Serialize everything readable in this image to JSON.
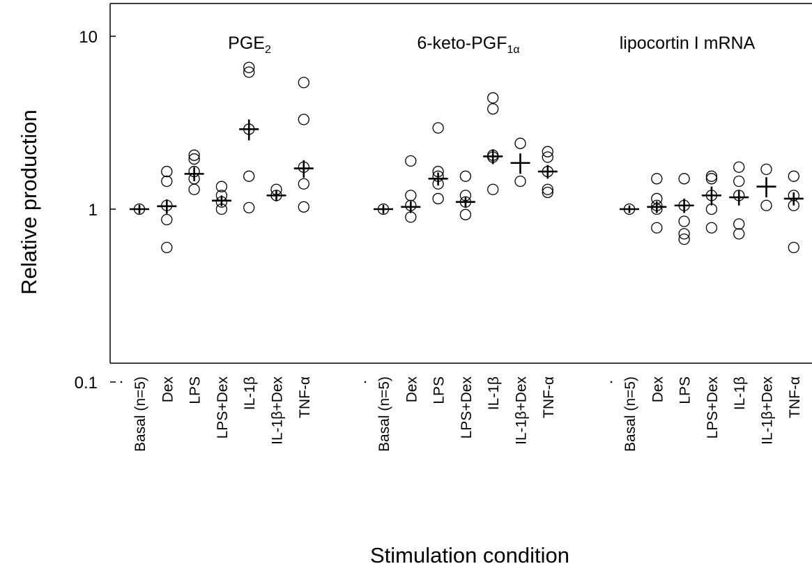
{
  "chart_data": {
    "type": "scatter",
    "title": "",
    "xlabel": "Stimulation condition",
    "ylabel": "Relative production",
    "yscale": "log",
    "ylim": [
      0.1,
      20
    ],
    "yticks": [
      {
        "value": 0.1,
        "label": "0.1"
      },
      {
        "value": 1,
        "label": "1"
      },
      {
        "value": 10,
        "label": "10"
      }
    ],
    "grid": false,
    "legend": "none",
    "marker_style": "open circles = individual values; crosses = mean ± error",
    "categories": [
      "Basal (n=5)",
      "Dex",
      "LPS",
      "LPS+Dex",
      "IL-1β",
      "IL-1β+Dex",
      "TNF-α"
    ],
    "panels": [
      {
        "title_main": "PGE",
        "title_sub": "2",
        "groups": [
          {
            "category": "Basal (n=5)",
            "points": [
              1.0
            ],
            "mean": 1.0,
            "err": 0.06
          },
          {
            "category": "Dex",
            "points": [
              1.65,
              1.45,
              1.05,
              0.87,
              0.6
            ],
            "mean": 1.04,
            "err": 0.1
          },
          {
            "category": "LPS",
            "points": [
              2.05,
              1.95,
              1.65,
              1.5,
              1.3
            ],
            "mean": 1.6,
            "err": 0.15
          },
          {
            "category": "LPS+Dex",
            "points": [
              1.35,
              1.2,
              1.1,
              1.0
            ],
            "mean": 1.12,
            "err": 0.08
          },
          {
            "category": "IL-1β",
            "points": [
              6.6,
              6.2,
              2.9,
              1.55,
              1.02
            ],
            "mean": 2.9,
            "err": 0.4
          },
          {
            "category": "IL-1β+Dex",
            "points": [
              1.3,
              1.2
            ],
            "mean": 1.2,
            "err": 0.09
          },
          {
            "category": "TNF-α",
            "points": [
              5.4,
              3.3,
              1.75,
              1.4,
              1.03
            ],
            "mean": 1.72,
            "err": 0.2
          }
        ]
      },
      {
        "title_main": "6-keto-PGF",
        "title_sub": "1α",
        "groups": [
          {
            "category": "Basal (n=5)",
            "points": [
              1.0
            ],
            "mean": 1.0,
            "err": 0.06
          },
          {
            "category": "Dex",
            "points": [
              1.9,
              1.2,
              1.05,
              0.9
            ],
            "mean": 1.03,
            "err": 0.08
          },
          {
            "category": "LPS",
            "points": [
              2.95,
              1.65,
              1.55,
              1.4,
              1.15
            ],
            "mean": 1.5,
            "err": 0.13
          },
          {
            "category": "LPS+Dex",
            "points": [
              1.55,
              1.2,
              1.1,
              0.93
            ],
            "mean": 1.1,
            "err": 0.08
          },
          {
            "category": "IL-1β",
            "points": [
              4.4,
              3.8,
              2.05,
              2.0,
              1.3
            ],
            "mean": 2.02,
            "err": 0.2
          },
          {
            "category": "IL-1β+Dex",
            "points": [
              2.4,
              1.45
            ],
            "mean": 1.85,
            "err": 0.25
          },
          {
            "category": "TNF-α",
            "points": [
              2.15,
              2.0,
              1.65,
              1.3,
              1.25
            ],
            "mean": 1.65,
            "err": 0.15
          }
        ]
      },
      {
        "title_main": "lipocortin I mRNA",
        "title_sub": "",
        "groups": [
          {
            "category": "Basal (n=5)",
            "points": [
              1.0
            ],
            "mean": 1.0,
            "err": 0.05
          },
          {
            "category": "Dex",
            "points": [
              1.5,
              1.15,
              1.05,
              1.0,
              0.78
            ],
            "mean": 1.03,
            "err": 0.08
          },
          {
            "category": "LPS",
            "points": [
              1.5,
              1.05,
              0.85,
              0.72,
              0.67
            ],
            "mean": 1.05,
            "err": 0.1
          },
          {
            "category": "LPS+Dex",
            "points": [
              1.55,
              1.5,
              1.2,
              1.0,
              0.78
            ],
            "mean": 1.2,
            "err": 0.15
          },
          {
            "category": "IL-1β",
            "points": [
              1.75,
              1.45,
              1.2,
              0.82,
              0.72
            ],
            "mean": 1.17,
            "err": 0.12
          },
          {
            "category": "IL-1β+Dex",
            "points": [
              1.7,
              1.05
            ],
            "mean": 1.35,
            "err": 0.18
          },
          {
            "category": "TNF-α",
            "points": [
              1.55,
              1.2,
              1.05,
              0.6
            ],
            "mean": 1.15,
            "err": 0.1
          }
        ]
      }
    ]
  }
}
